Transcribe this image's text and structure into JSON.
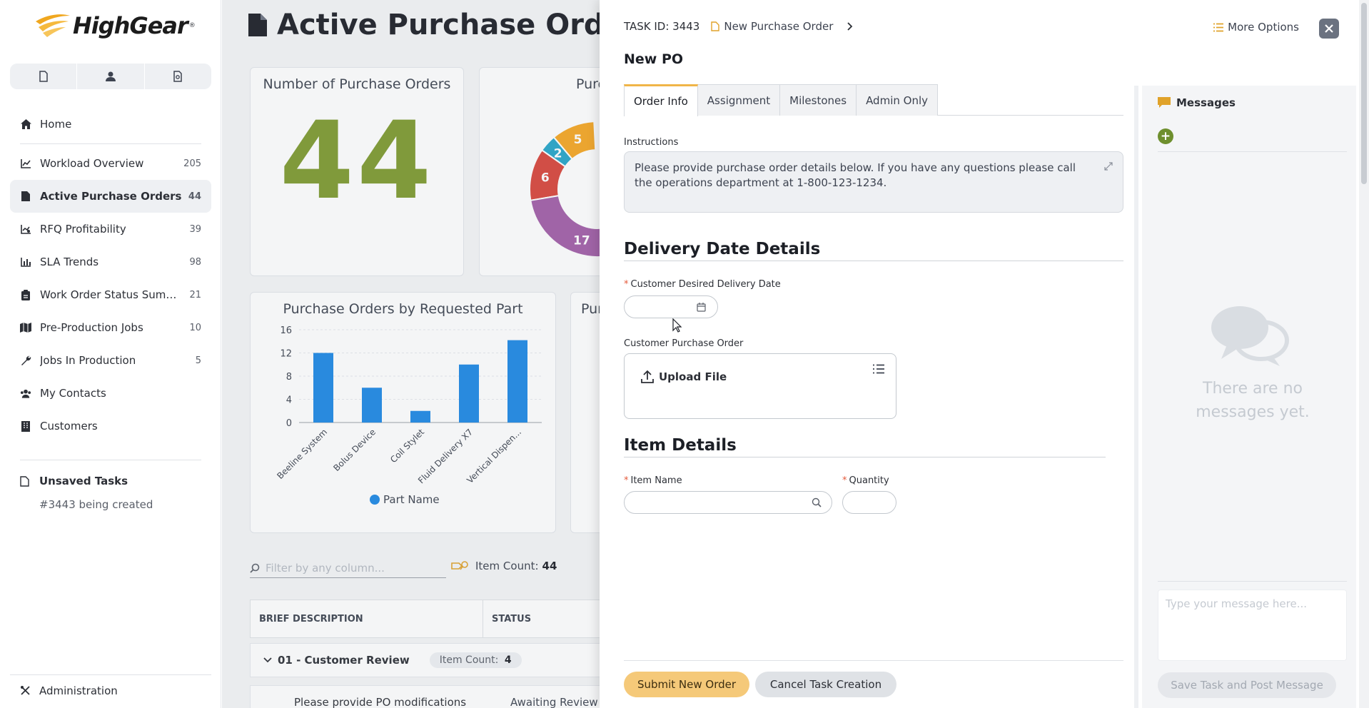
{
  "brand": {
    "name": "HighGear",
    "reg": "®"
  },
  "sidebar": {
    "items": [
      {
        "label": "Home",
        "count": ""
      },
      {
        "label": "Workload Overview",
        "count": "205"
      },
      {
        "label": "Active Purchase Orders",
        "count": "44"
      },
      {
        "label": "RFQ Profitability",
        "count": "39"
      },
      {
        "label": "SLA Trends",
        "count": "98"
      },
      {
        "label": "Work Order Status Summa...",
        "count": "21"
      },
      {
        "label": "Pre-Production Jobs",
        "count": "10"
      },
      {
        "label": "Jobs In Production",
        "count": "5"
      },
      {
        "label": "My Contacts",
        "count": ""
      },
      {
        "label": "Customers",
        "count": ""
      }
    ],
    "unsaved_title": "Unsaved Tasks",
    "unsaved_item": "#3443 being created",
    "admin": "Administration"
  },
  "main": {
    "title": "Active Purchase Orders",
    "card_count_title": "Number of Purchase Orders",
    "card_count_value": "44",
    "card_pie_title": "Purc",
    "card_bar_title": "Purchase Orders by Requested Part",
    "card_other_title": "Pur",
    "filter_placeholder": "Filter by any column...",
    "item_count_label": "Item Count:",
    "item_count_value": "44",
    "columns": [
      "BRIEF DESCRIPTION",
      "STATUS"
    ],
    "group_label": "01 - Customer Review",
    "group_count_label": "Item Count:",
    "group_count_value": "4",
    "row_desc": "Please provide PO modifications",
    "row_status": "Awaiting Review"
  },
  "chart_data": [
    {
      "type": "pie",
      "title": "Purc",
      "slice_labels": [
        "5",
        "2",
        "6",
        "17"
      ],
      "values": [
        5,
        2,
        6,
        17
      ],
      "colors": [
        "#f5a623",
        "#26a5c9",
        "#d9463b",
        "#a25ea7"
      ]
    },
    {
      "type": "bar",
      "title": "Purchase Orders by Requested Part",
      "categories": [
        "Beeline System",
        "Bolus Device",
        "Coil Stylet",
        "Fluid Delivery X7",
        "Vertical Dispen..."
      ],
      "series": [
        {
          "name": "Part Name",
          "values": [
            12,
            6,
            2,
            10,
            14.2
          ]
        }
      ],
      "ylim": [
        0,
        16
      ],
      "yticks": [
        "16",
        "12",
        "8",
        "4",
        "0"
      ],
      "color": "#1e88e5",
      "legend": "bottom"
    }
  ],
  "panel": {
    "task_id_label": "TASK ID: 3443",
    "breadcrumb": "New Purchase Order",
    "more_options": "More Options",
    "task_name": "New PO",
    "tabs": [
      "Order Info",
      "Assignment",
      "Milestones",
      "Admin Only"
    ],
    "instructions_label": "Instructions",
    "instructions_text": "Please provide purchase order details below. If you have any questions please call the operations department at 1-800-123-1234.",
    "section_delivery": "Delivery Date Details",
    "desired_date_label": "Customer Desired Delivery Date",
    "po_label": "Customer Purchase Order",
    "upload_label": "Upload File",
    "section_items": "Item Details",
    "item_name_label": "Item Name",
    "quantity_label": "Quantity",
    "submit": "Submit New Order",
    "cancel": "Cancel Task Creation"
  },
  "messages": {
    "title": "Messages",
    "empty": "There are no messages yet.",
    "placeholder": "Type your message here...",
    "save": "Save Task and Post Message"
  },
  "colors": {
    "accent": "#f0b548",
    "green": "#7e9a2f",
    "bar": "#1e88e5"
  }
}
